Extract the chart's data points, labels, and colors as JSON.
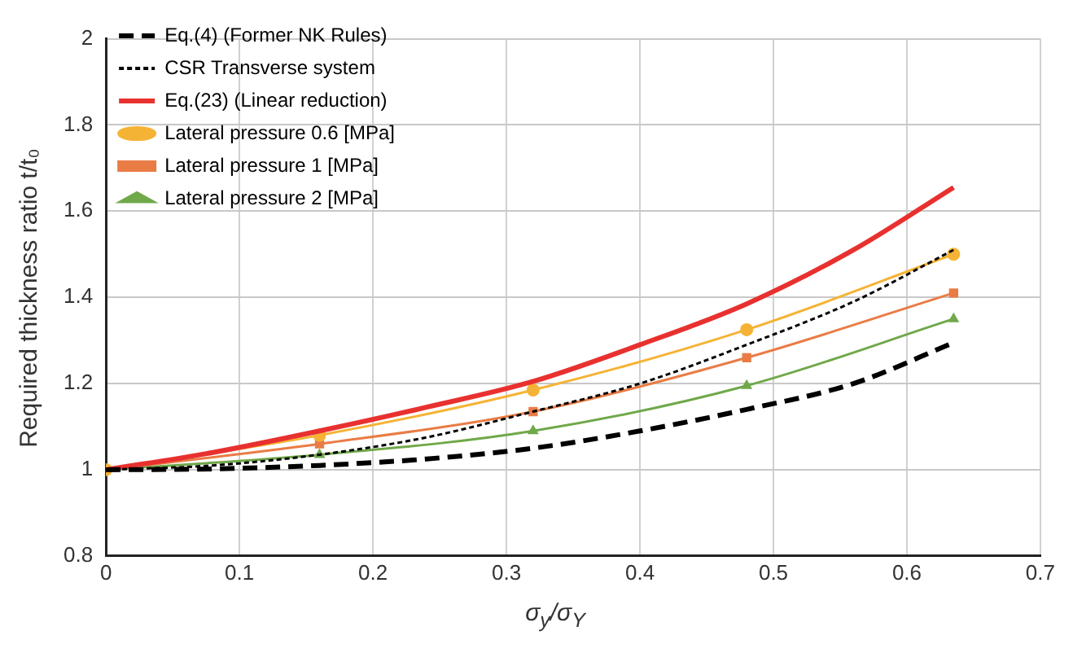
{
  "chart_data": {
    "type": "line",
    "xlabel": "σ$_{y}$/σ$_{Y}$",
    "ylabel": "Required thickness ratio t/t₀",
    "xlim": [
      0,
      0.7
    ],
    "xticks": [
      0,
      0.1,
      0.2,
      0.3,
      0.4,
      0.5,
      0.6,
      0.7
    ],
    "ylim": [
      0.8,
      2
    ],
    "yticks": [
      0.8,
      1,
      1.2,
      1.4,
      1.6,
      1.8,
      2
    ],
    "grid": true,
    "legend": "top left",
    "series": [
      {
        "name": "Eq.(4) (Former NK Rules)",
        "color": "#000000",
        "line_style": "dashed",
        "marker": "none",
        "x": [
          0,
          0.08,
          0.16,
          0.24,
          0.32,
          0.4,
          0.48,
          0.56,
          0.635
        ],
        "values": [
          1,
          1.002,
          1.01,
          1.025,
          1.05,
          1.09,
          1.14,
          1.2,
          1.295
        ]
      },
      {
        "name": "CSR Transverse system",
        "color": "#000000",
        "line_style": "dotted",
        "marker": "none",
        "x": [
          0,
          0.08,
          0.16,
          0.24,
          0.32,
          0.4,
          0.48,
          0.56,
          0.635
        ],
        "values": [
          1,
          1.01,
          1.035,
          1.075,
          1.135,
          1.2,
          1.29,
          1.39,
          1.51
        ]
      },
      {
        "name": "Eq.(23) (Linear reduction)",
        "color": "#e8312f",
        "line_style": "solid",
        "marker": "none",
        "x": [
          0,
          0.08,
          0.16,
          0.24,
          0.32,
          0.4,
          0.48,
          0.56,
          0.635
        ],
        "values": [
          1,
          1.04,
          1.09,
          1.145,
          1.205,
          1.29,
          1.385,
          1.51,
          1.655
        ]
      },
      {
        "name": "Lateral pressure 0.6 [MPa]",
        "color": "#f5b335",
        "line_style": "solid",
        "marker": "circle",
        "x": [
          0,
          0.16,
          0.32,
          0.48,
          0.635
        ],
        "values": [
          1,
          1.08,
          1.185,
          1.325,
          1.5
        ]
      },
      {
        "name": "Lateral pressure 1 [MPa]",
        "color": "#e97c45",
        "line_style": "solid",
        "marker": "square",
        "x": [
          0,
          0.16,
          0.32,
          0.48,
          0.635
        ],
        "values": [
          1,
          1.06,
          1.135,
          1.26,
          1.41
        ]
      },
      {
        "name": "Lateral pressure 2 [MPa]",
        "color": "#70a84a",
        "line_style": "solid",
        "marker": "triangle",
        "x": [
          0,
          0.16,
          0.32,
          0.48,
          0.635
        ],
        "values": [
          1,
          1.035,
          1.09,
          1.195,
          1.35
        ]
      }
    ]
  }
}
